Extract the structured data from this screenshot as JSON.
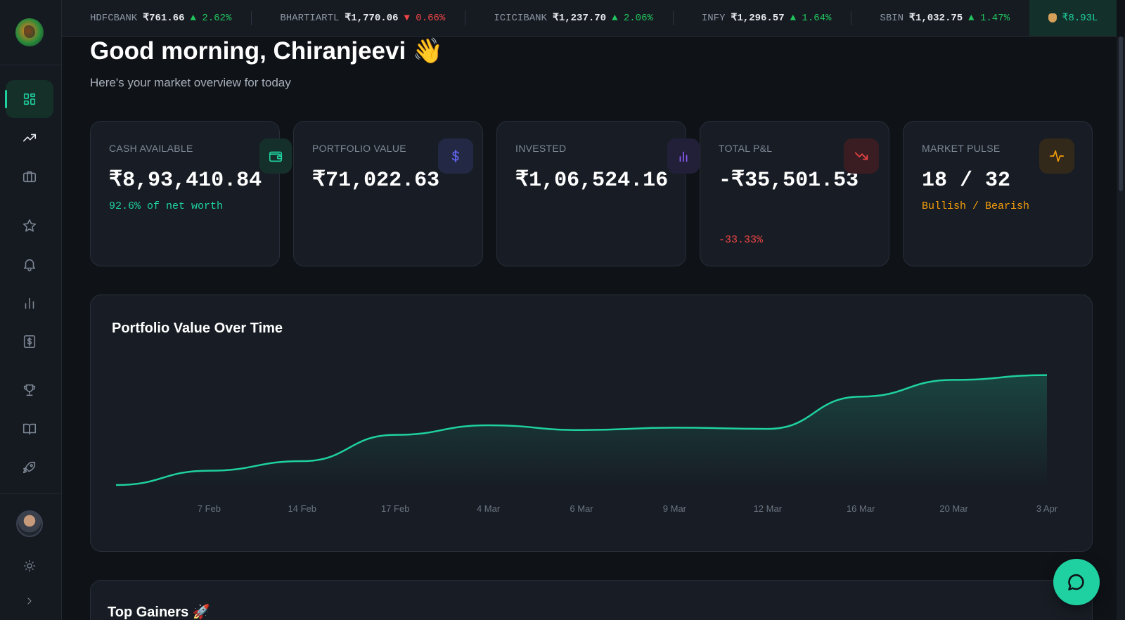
{
  "ticker": [
    {
      "symbol": "HDFCBANK",
      "price": "₹761.66",
      "change": "▲ 2.62%",
      "direction": "up"
    },
    {
      "symbol": "BHARTIARTL",
      "price": "₹1,770.06",
      "change": "▼ 0.66%",
      "direction": "down"
    },
    {
      "symbol": "ICICIBANK",
      "price": "₹1,237.70",
      "change": "▲ 2.06%",
      "direction": "up"
    },
    {
      "symbol": "INFY",
      "price": "₹1,296.57",
      "change": "▲ 1.64%",
      "direction": "up"
    },
    {
      "symbol": "SBIN",
      "price": "₹1,032.75",
      "change": "▲ 1.47%",
      "direction": "up"
    }
  ],
  "balance": "₹8.93L",
  "greeting": "Good morning, Chiranjeevi 👋",
  "subtitle": "Here's your market overview for today",
  "cards": {
    "cash": {
      "label": "CASH AVAILABLE",
      "value": "₹8,93,410.84",
      "sub": "92.6% of net worth"
    },
    "portfolio": {
      "label": "PORTFOLIO VALUE",
      "value": "₹71,022.63"
    },
    "invested": {
      "label": "INVESTED",
      "value": "₹1,06,524.16"
    },
    "pnl": {
      "label": "TOTAL P&L",
      "value": "-₹35,501.53",
      "sub": "-33.33%"
    },
    "pulse": {
      "label": "MARKET PULSE",
      "value": "18 / 32",
      "sub": "Bullish / Bearish"
    }
  },
  "colors": {
    "accent": "#1fd1a0",
    "up": "#22c55e",
    "down": "#ef4444",
    "pulse": "#f59e0b",
    "dollar": "#6366f1",
    "invested": "#8b5cf6"
  },
  "chart_data": {
    "type": "area",
    "title": "Portfolio Value Over Time",
    "x": [
      "",
      "7 Feb",
      "14 Feb",
      "17 Feb",
      "4 Mar",
      "6 Mar",
      "9 Mar",
      "12 Mar",
      "16 Mar",
      "20 Mar",
      "3 Apr"
    ],
    "series": [
      {
        "values": [
          0,
          12,
          20,
          42,
          50,
          46,
          48,
          47,
          74,
          88,
          92
        ]
      }
    ],
    "yrange": [
      0,
      100
    ],
    "grid": false
  },
  "gainers": {
    "title": "Top Gainers 🚀"
  },
  "icons": [
    "dashboard-icon",
    "trending-up-icon",
    "briefcase-icon",
    "star-icon",
    "bell-icon",
    "bar-chart-icon",
    "dollar-icon",
    "trophy-icon",
    "book-icon",
    "rocket-icon",
    "sun-icon",
    "chevron-right-icon",
    "wallet-icon",
    "trending-down-icon",
    "activity-icon",
    "chat-icon"
  ]
}
